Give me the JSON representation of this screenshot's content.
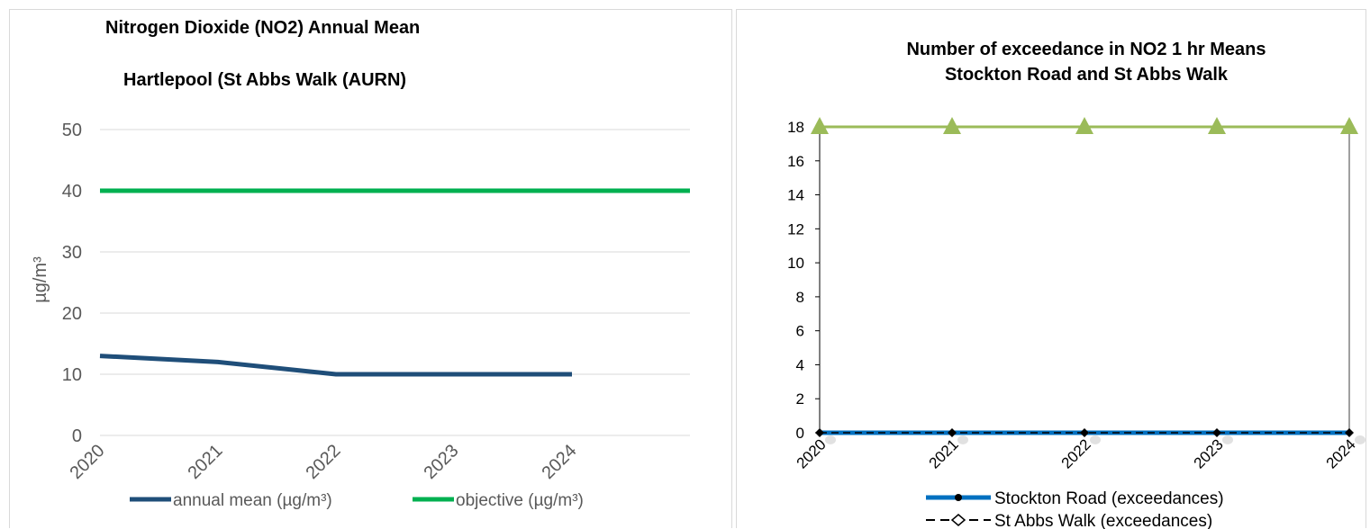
{
  "chart_data": [
    {
      "type": "line",
      "title": "Nitrogen Dioxide (NO2) Annual Mean",
      "subtitle": "Hartlepool (St Abbs Walk (AURN)",
      "ylabel": "µg/m³",
      "xlabel": "",
      "categories": [
        "2020",
        "2021",
        "2022",
        "2023",
        "2024"
      ],
      "ylim": [
        0,
        50
      ],
      "yticks": [
        0,
        10,
        20,
        30,
        40,
        50
      ],
      "grid": true,
      "legend_position": "bottom",
      "series": [
        {
          "name": "annual mean (µg/m³)",
          "color": "#1f4e79",
          "values": [
            13,
            12,
            10,
            10,
            10
          ]
        },
        {
          "name": "objective (µg/m³)",
          "color": "#00b050",
          "values": [
            40,
            40,
            40,
            40,
            40
          ]
        }
      ]
    },
    {
      "type": "line",
      "title": "Number of exceedance in NO2 1 hr Means",
      "subtitle": "Stockton Road and St Abbs Walk",
      "xlabel": "",
      "ylabel": "",
      "categories": [
        "2020",
        "2021",
        "2022",
        "2023",
        "2024"
      ],
      "ylim": [
        0,
        18
      ],
      "yticks": [
        0,
        2,
        4,
        6,
        8,
        10,
        12,
        14,
        16,
        18
      ],
      "grid": false,
      "legend_position": "bottom",
      "series": [
        {
          "name": "",
          "color": "#9bbb59",
          "marker": "triangle",
          "values": [
            18,
            18,
            18,
            18,
            18
          ]
        },
        {
          "name": "Stockton Road (exceedances)",
          "color": "#0070c0",
          "marker": "circle",
          "values": [
            0,
            0,
            0,
            0,
            0
          ]
        },
        {
          "name": "St Abbs Walk (exceedances)",
          "color": "#000000",
          "marker": "diamond",
          "dashed": true,
          "values": [
            0,
            0,
            0,
            0,
            0
          ]
        }
      ]
    }
  ]
}
